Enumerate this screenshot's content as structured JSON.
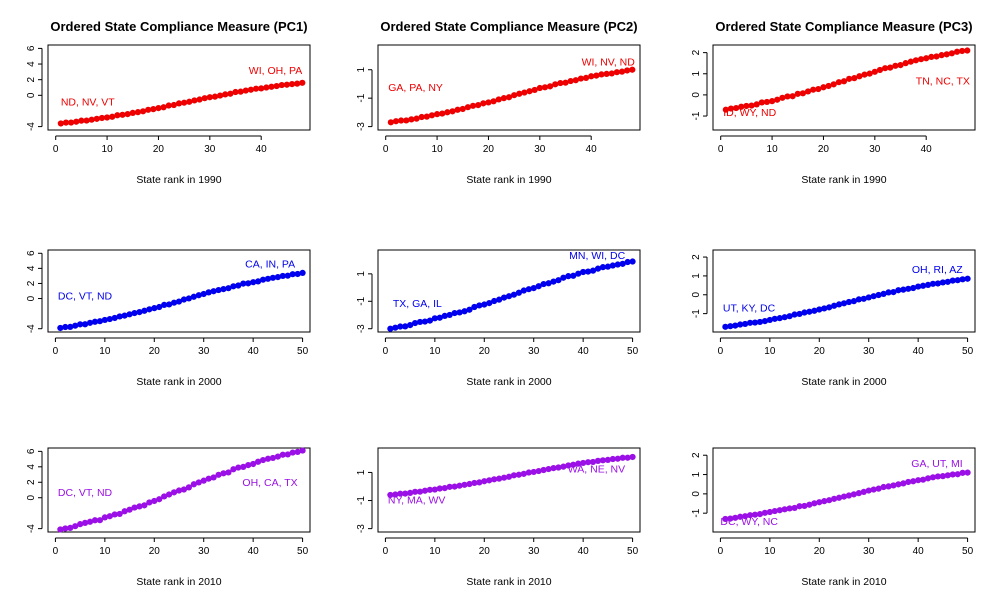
{
  "colors": {
    "1990": "#ee0000",
    "2000": "#0000ee",
    "2010": "#9a10e6"
  },
  "chart_data": [
    {
      "type": "scatter",
      "title": "Ordered State Compliance Measure (PC1)",
      "xlabel": "State rank in 1990",
      "color": "#ee0000",
      "xlim": [
        0,
        48
      ],
      "ylim": [
        -4,
        6
      ],
      "xticks": [
        0,
        10,
        20,
        30,
        40
      ],
      "yticks": [
        -4,
        0,
        2,
        4,
        6
      ],
      "ytick_labels": [
        "-4",
        "0",
        "2",
        "4",
        "6"
      ],
      "y_start": -3.6,
      "y_end": 1.6,
      "annotations": [
        {
          "text": "ND, NV, VT",
          "x": 1,
          "y": -1.3,
          "anchor": "start"
        },
        {
          "text": "WI, OH, PA",
          "x": 48,
          "y": 2.7,
          "anchor": "end"
        }
      ]
    },
    {
      "type": "scatter",
      "title": "Ordered State Compliance Measure (PC2)",
      "xlabel": "State rank in 1990",
      "color": "#ee0000",
      "xlim": [
        0,
        48
      ],
      "ylim": [
        -3,
        2.5
      ],
      "xticks": [
        0,
        10,
        20,
        30,
        40
      ],
      "yticks": [
        -3,
        -1,
        1
      ],
      "ytick_labels": [
        "-3",
        "-1",
        "1"
      ],
      "y_start": -2.7,
      "y_end": 1.0,
      "annotations": [
        {
          "text": "GA, PA, NY",
          "x": 0.5,
          "y": -0.5,
          "anchor": "start"
        },
        {
          "text": "WI, NV, ND",
          "x": 48.5,
          "y": 1.3,
          "anchor": "end"
        }
      ]
    },
    {
      "type": "scatter",
      "title": "Ordered State Compliance Measure (PC3)",
      "xlabel": "State rank in 1990",
      "color": "#ee0000",
      "xlim": [
        0,
        48
      ],
      "ylim": [
        -1.5,
        2.2
      ],
      "xticks": [
        0,
        10,
        20,
        30,
        40
      ],
      "yticks": [
        -1,
        0,
        1,
        2
      ],
      "ytick_labels": [
        "-1",
        "0",
        "1",
        "2"
      ],
      "y_start": -0.7,
      "y_end": 2.1,
      "annotations": [
        {
          "text": "ID, WY, ND",
          "x": 0.5,
          "y": -1.0,
          "anchor": "start"
        },
        {
          "text": "TN, NC, TX",
          "x": 48.5,
          "y": 0.5,
          "anchor": "end"
        }
      ]
    },
    {
      "type": "scatter",
      "title": "",
      "xlabel": "State rank in 2000",
      "color": "#0000ee",
      "xlim": [
        0,
        50
      ],
      "ylim": [
        -4,
        6
      ],
      "xticks": [
        0,
        10,
        20,
        30,
        40,
        50
      ],
      "yticks": [
        -4,
        0,
        2,
        4,
        6
      ],
      "ytick_labels": [
        "-4",
        "0",
        "2",
        "4",
        "6"
      ],
      "y_start": -3.9,
      "y_end": 3.4,
      "annotations": [
        {
          "text": "DC, VT, ND",
          "x": 0.5,
          "y": -0.1,
          "anchor": "start"
        },
        {
          "text": "CA, IN, PA",
          "x": 48.5,
          "y": 4.1,
          "anchor": "end"
        }
      ]
    },
    {
      "type": "scatter",
      "title": "",
      "xlabel": "State rank in 2000",
      "color": "#0000ee",
      "xlim": [
        0,
        50
      ],
      "ylim": [
        -3,
        2.5
      ],
      "xticks": [
        0,
        10,
        20,
        30,
        40,
        50
      ],
      "yticks": [
        -3,
        -1,
        1
      ],
      "ytick_labels": [
        "-3",
        "-1",
        "1"
      ],
      "y_start": -3.0,
      "y_end": 1.9,
      "annotations": [
        {
          "text": "TX, GA, IL",
          "x": 1.5,
          "y": -1.4,
          "anchor": "start"
        },
        {
          "text": "MN, WI, DC",
          "x": 48.5,
          "y": 2.1,
          "anchor": "end"
        }
      ]
    },
    {
      "type": "scatter",
      "title": "",
      "xlabel": "State rank in 2000",
      "color": "#0000ee",
      "xlim": [
        0,
        50
      ],
      "ylim": [
        -1.8,
        2.2
      ],
      "xticks": [
        0,
        10,
        20,
        30,
        40,
        50
      ],
      "yticks": [
        -1,
        0,
        1,
        2
      ],
      "ytick_labels": [
        "-1",
        "0",
        "1",
        "2"
      ],
      "y_start": -1.7,
      "y_end": 0.85,
      "annotations": [
        {
          "text": "UT, KY, DC",
          "x": 0.5,
          "y": -0.9,
          "anchor": "start"
        },
        {
          "text": "OH, RI, AZ",
          "x": 49,
          "y": 1.15,
          "anchor": "end"
        }
      ]
    },
    {
      "type": "scatter",
      "title": "",
      "xlabel": "State rank in 2010",
      "color": "#9a10e6",
      "xlim": [
        0,
        50
      ],
      "ylim": [
        -4,
        6
      ],
      "xticks": [
        0,
        10,
        20,
        30,
        40,
        50
      ],
      "yticks": [
        -4,
        0,
        2,
        4,
        6
      ],
      "ytick_labels": [
        "-4",
        "0",
        "2",
        "4",
        "6"
      ],
      "y_start": -4.1,
      "y_end": 6.1,
      "annotations": [
        {
          "text": "DC, VT, ND",
          "x": 0.5,
          "y": 0.2,
          "anchor": "start"
        },
        {
          "text": "OH, CA, TX",
          "x": 49,
          "y": 1.5,
          "anchor": "end"
        }
      ]
    },
    {
      "type": "scatter",
      "title": "",
      "xlabel": "State rank in 2010",
      "color": "#9a10e6",
      "xlim": [
        0,
        50
      ],
      "ylim": [
        -3,
        2.5
      ],
      "xticks": [
        0,
        10,
        20,
        30,
        40,
        50
      ],
      "yticks": [
        -3,
        -1,
        1
      ],
      "ytick_labels": [
        "-3",
        "-1",
        "1"
      ],
      "y_start": -0.6,
      "y_end": 2.1,
      "annotations": [
        {
          "text": "NY, MA, WV",
          "x": 0.5,
          "y": -1.2,
          "anchor": "start"
        },
        {
          "text": "WA, NE, NV",
          "x": 48.5,
          "y": 1.0,
          "anchor": "end"
        }
      ]
    },
    {
      "type": "scatter",
      "title": "",
      "xlabel": "State rank in 2010",
      "color": "#9a10e6",
      "xlim": [
        0,
        50
      ],
      "ylim": [
        -1.8,
        2.2
      ],
      "xticks": [
        0,
        10,
        20,
        30,
        40,
        50
      ],
      "yticks": [
        -1,
        0,
        1,
        2
      ],
      "ytick_labels": [
        "-1",
        "0",
        "1",
        "2"
      ],
      "y_start": -1.3,
      "y_end": 1.1,
      "annotations": [
        {
          "text": "DC, WY, NC",
          "x": 0,
          "y": -1.6,
          "anchor": "start"
        },
        {
          "text": "GA, UT, MI",
          "x": 49,
          "y": 1.4,
          "anchor": "end"
        }
      ]
    }
  ]
}
